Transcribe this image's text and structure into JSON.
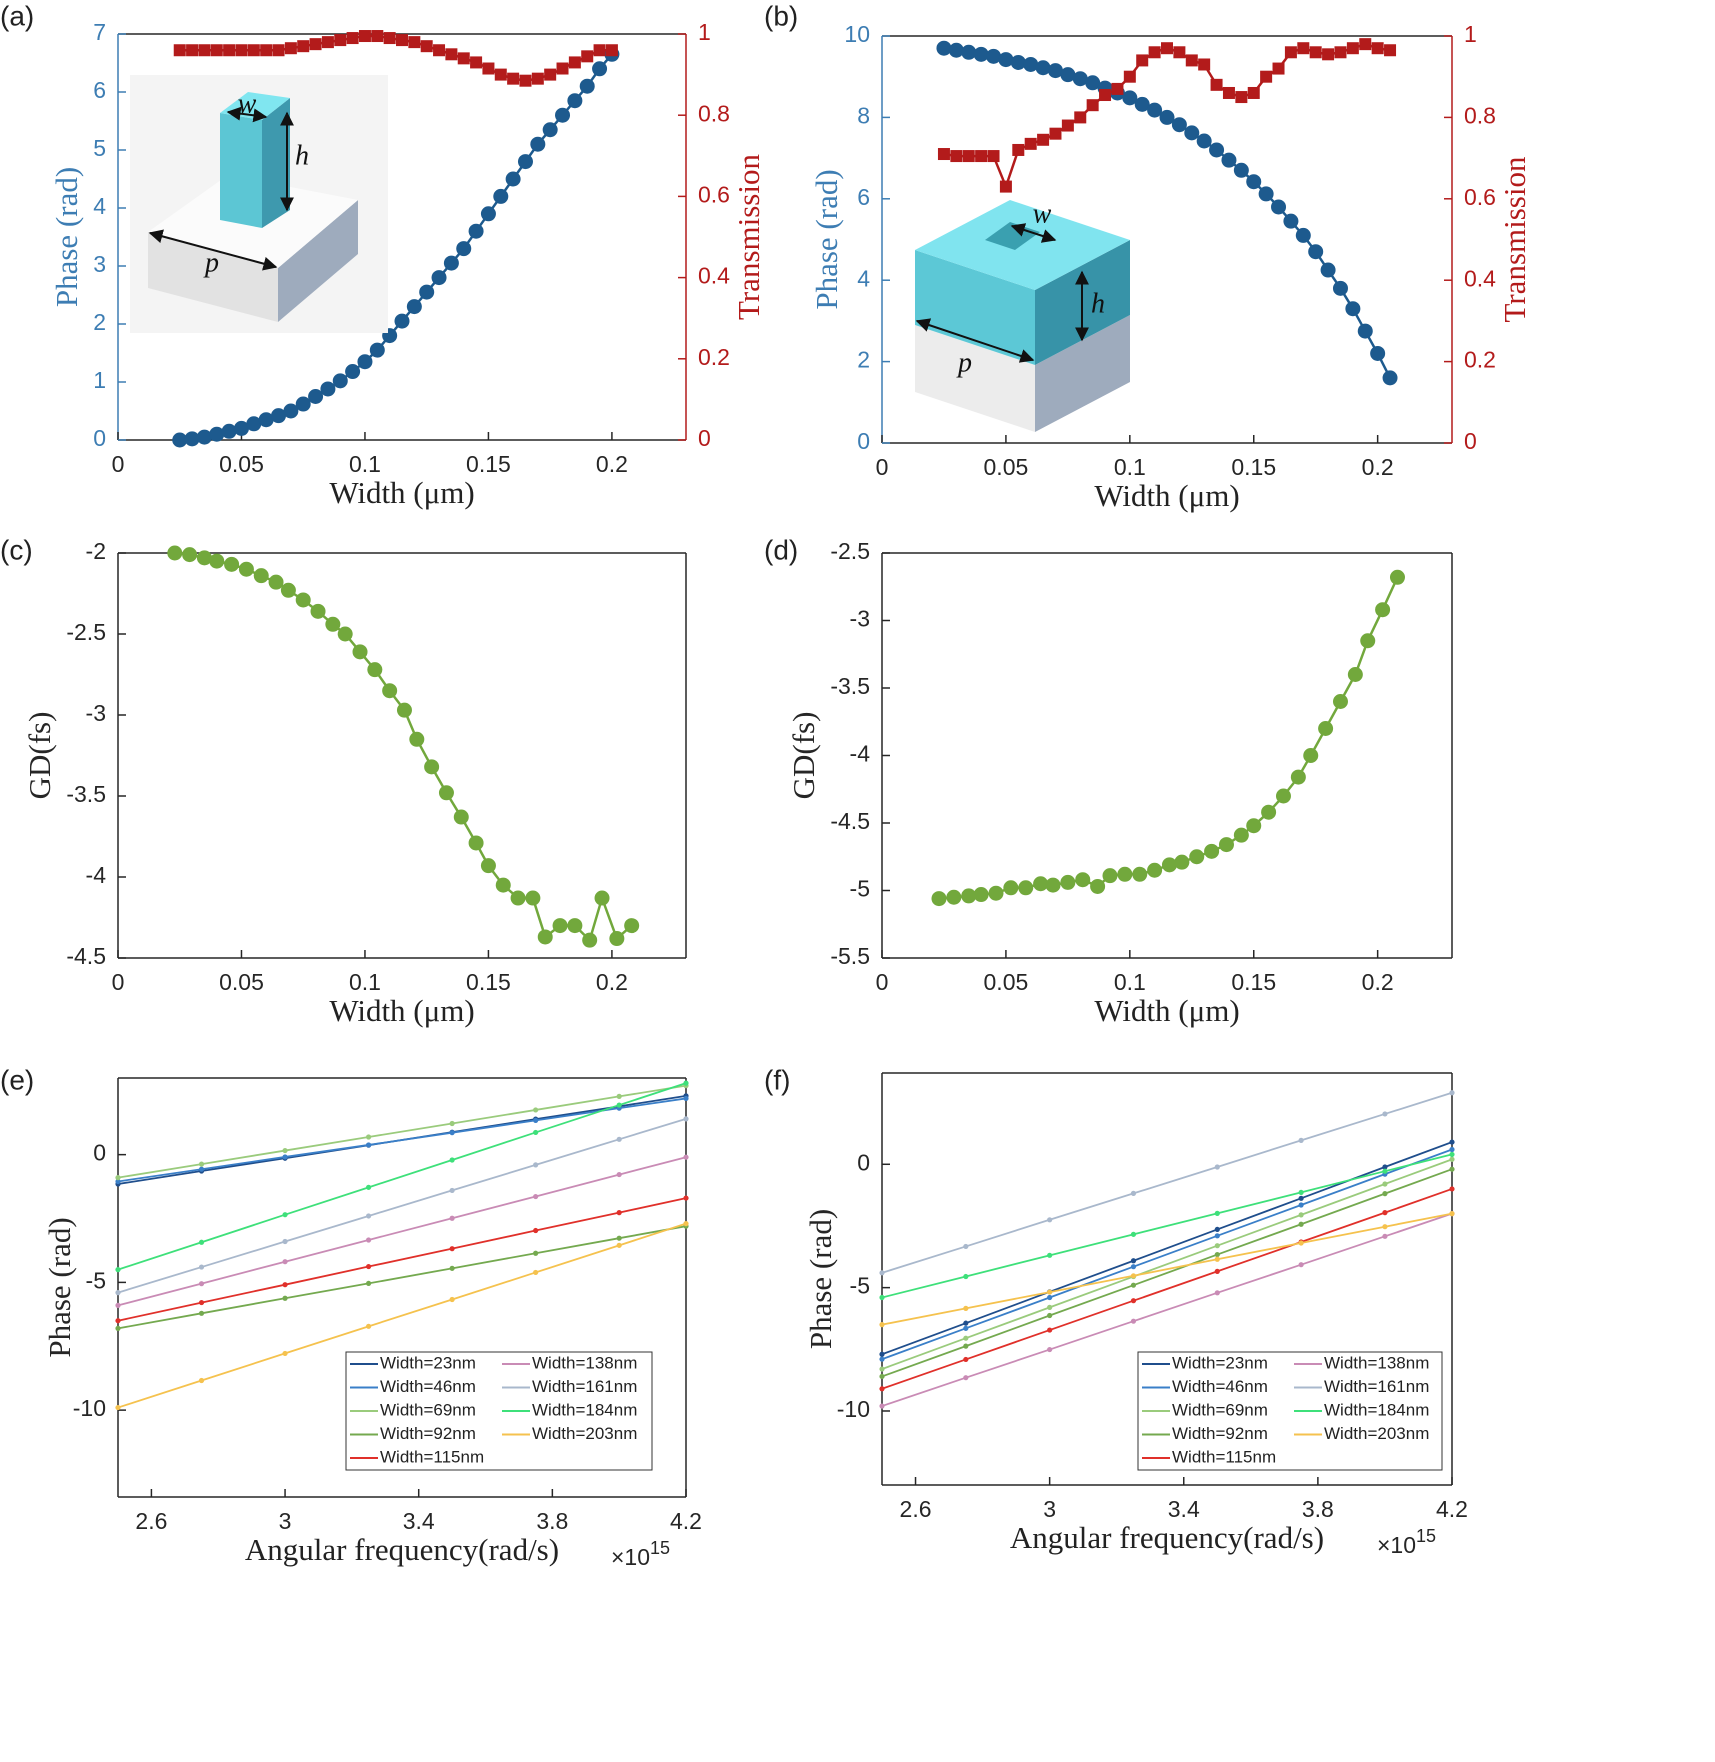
{
  "chart_data": [
    {
      "type": "line",
      "panel": "(a)",
      "xlabel": "Width (μm)",
      "ylabel": "Phase (rad)",
      "y2label": "Transmission",
      "ycolor": "#3d7db3",
      "y2color": "#b31b1b",
      "xlim": [
        0,
        0.23
      ],
      "xticks": [
        0,
        0.05,
        0.1,
        0.15,
        0.2
      ],
      "ylim": [
        0,
        7
      ],
      "yticks": [
        0,
        1,
        2,
        3,
        4,
        5,
        6,
        7
      ],
      "y2lim": [
        0,
        1
      ],
      "y2ticks": [
        0,
        0.2,
        0.4,
        0.6,
        0.8,
        1
      ],
      "inset_labels": [
        "w",
        "h",
        "p"
      ],
      "x": [
        0.025,
        0.03,
        0.035,
        0.04,
        0.045,
        0.05,
        0.055,
        0.06,
        0.065,
        0.07,
        0.075,
        0.08,
        0.085,
        0.09,
        0.095,
        0.1,
        0.105,
        0.11,
        0.115,
        0.12,
        0.125,
        0.13,
        0.135,
        0.14,
        0.145,
        0.15,
        0.155,
        0.16,
        0.165,
        0.17,
        0.175,
        0.18,
        0.185,
        0.19,
        0.195,
        0.2
      ],
      "series": [
        {
          "color": "#1d5a8e",
          "marker": "circle",
          "values": [
            0.0,
            0.02,
            0.05,
            0.1,
            0.15,
            0.2,
            0.28,
            0.35,
            0.42,
            0.5,
            0.62,
            0.75,
            0.88,
            1.02,
            1.18,
            1.35,
            1.55,
            1.8,
            2.05,
            2.3,
            2.55,
            2.8,
            3.05,
            3.3,
            3.6,
            3.9,
            4.2,
            4.5,
            4.8,
            5.1,
            5.35,
            5.6,
            5.85,
            6.1,
            6.4,
            6.65
          ]
        },
        {
          "color": "#b31b1b",
          "marker": "square",
          "axis": "y2",
          "values": [
            0.96,
            0.96,
            0.96,
            0.96,
            0.96,
            0.96,
            0.96,
            0.96,
            0.96,
            0.965,
            0.97,
            0.975,
            0.98,
            0.985,
            0.99,
            0.995,
            0.995,
            0.99,
            0.985,
            0.98,
            0.97,
            0.96,
            0.95,
            0.94,
            0.93,
            0.915,
            0.9,
            0.89,
            0.885,
            0.89,
            0.9,
            0.915,
            0.93,
            0.945,
            0.96,
            0.96
          ]
        }
      ]
    },
    {
      "type": "line",
      "panel": "(b)",
      "xlabel": "Width (μm)",
      "ylabel": "Phase (rad)",
      "y2label": "Transmission",
      "ycolor": "#3d7db3",
      "y2color": "#b31b1b",
      "xlim": [
        0,
        0.23
      ],
      "xticks": [
        0,
        0.05,
        0.1,
        0.15,
        0.2
      ],
      "ylim": [
        0,
        10
      ],
      "yticks": [
        0,
        2,
        4,
        6,
        8,
        10
      ],
      "y2lim": [
        0,
        1
      ],
      "y2ticks": [
        0,
        0.2,
        0.4,
        0.6,
        0.8,
        1
      ],
      "inset_labels": [
        "w",
        "h",
        "p"
      ],
      "x": [
        0.025,
        0.03,
        0.035,
        0.04,
        0.045,
        0.05,
        0.055,
        0.06,
        0.065,
        0.07,
        0.075,
        0.08,
        0.085,
        0.09,
        0.095,
        0.1,
        0.105,
        0.11,
        0.115,
        0.12,
        0.125,
        0.13,
        0.135,
        0.14,
        0.145,
        0.15,
        0.155,
        0.16,
        0.165,
        0.17,
        0.175,
        0.18,
        0.185,
        0.19,
        0.195,
        0.2,
        0.205
      ],
      "series": [
        {
          "color": "#1d5a8e",
          "marker": "circle",
          "values": [
            9.7,
            9.65,
            9.6,
            9.55,
            9.5,
            9.42,
            9.35,
            9.3,
            9.22,
            9.15,
            9.05,
            8.95,
            8.85,
            8.72,
            8.6,
            8.48,
            8.32,
            8.18,
            8.0,
            7.82,
            7.62,
            7.42,
            7.2,
            6.95,
            6.7,
            6.42,
            6.12,
            5.8,
            5.45,
            5.1,
            4.7,
            4.25,
            3.8,
            3.3,
            2.75,
            2.2,
            1.6
          ]
        },
        {
          "color": "#b31b1b",
          "marker": "square",
          "axis": "y2",
          "values": [
            0.71,
            0.705,
            0.705,
            0.705,
            0.705,
            0.63,
            0.72,
            0.735,
            0.745,
            0.76,
            0.78,
            0.8,
            0.83,
            0.855,
            0.87,
            0.9,
            0.94,
            0.96,
            0.97,
            0.96,
            0.94,
            0.93,
            0.88,
            0.86,
            0.85,
            0.86,
            0.9,
            0.92,
            0.96,
            0.97,
            0.96,
            0.955,
            0.96,
            0.97,
            0.98,
            0.97,
            0.965
          ]
        }
      ]
    },
    {
      "type": "line",
      "panel": "(c)",
      "xlabel": "Width (μm)",
      "ylabel": "GD(fs)",
      "xlim": [
        0,
        0.23
      ],
      "xticks": [
        0,
        0.05,
        0.1,
        0.15,
        0.2
      ],
      "ylim": [
        -4.5,
        -2
      ],
      "yticks": [
        -4.5,
        -4,
        -3.5,
        -3,
        -2.5,
        -2
      ],
      "x": [
        0.023,
        0.029,
        0.035,
        0.04,
        0.046,
        0.052,
        0.058,
        0.064,
        0.069,
        0.075,
        0.081,
        0.087,
        0.092,
        0.098,
        0.104,
        0.11,
        0.116,
        0.121,
        0.127,
        0.133,
        0.139,
        0.145,
        0.15,
        0.156,
        0.162,
        0.168,
        0.173,
        0.179,
        0.185,
        0.191,
        0.196,
        0.202,
        0.208
      ],
      "series": [
        {
          "color": "#72a83c",
          "marker": "circle",
          "values": [
            -2.0,
            -2.01,
            -2.03,
            -2.05,
            -2.07,
            -2.1,
            -2.14,
            -2.18,
            -2.23,
            -2.29,
            -2.36,
            -2.44,
            -2.5,
            -2.61,
            -2.72,
            -2.85,
            -2.97,
            -3.15,
            -3.32,
            -3.48,
            -3.63,
            -3.79,
            -3.93,
            -4.05,
            -4.13,
            -4.13,
            -4.37,
            -4.3,
            -4.3,
            -4.39,
            -4.13,
            -4.38,
            -4.3
          ]
        }
      ]
    },
    {
      "type": "line",
      "panel": "(d)",
      "xlabel": "Width (μm)",
      "ylabel": "GD(fs)",
      "xlim": [
        0,
        0.23
      ],
      "xticks": [
        0,
        0.05,
        0.1,
        0.15,
        0.2
      ],
      "ylim": [
        -5.5,
        -2.5
      ],
      "yticks": [
        -5.5,
        -5,
        -4.5,
        -4,
        -3.5,
        -3,
        -2.5
      ],
      "x": [
        0.023,
        0.029,
        0.035,
        0.04,
        0.046,
        0.052,
        0.058,
        0.064,
        0.069,
        0.075,
        0.081,
        0.087,
        0.092,
        0.098,
        0.104,
        0.11,
        0.116,
        0.121,
        0.127,
        0.133,
        0.139,
        0.145,
        0.15,
        0.156,
        0.162,
        0.168,
        0.173,
        0.179,
        0.185,
        0.191,
        0.196,
        0.202,
        0.208
      ],
      "series": [
        {
          "color": "#72a83c",
          "marker": "circle",
          "values": [
            -5.06,
            -5.05,
            -5.04,
            -5.03,
            -5.02,
            -4.98,
            -4.98,
            -4.95,
            -4.96,
            -4.94,
            -4.92,
            -4.97,
            -4.89,
            -4.88,
            -4.88,
            -4.85,
            -4.81,
            -4.79,
            -4.75,
            -4.71,
            -4.66,
            -4.59,
            -4.52,
            -4.42,
            -4.3,
            -4.16,
            -4.0,
            -3.8,
            -3.6,
            -3.4,
            -3.15,
            -2.92,
            -2.68
          ]
        }
      ]
    },
    {
      "type": "line",
      "panel": "(e)",
      "xlabel": "Angular frequency(rad/s)",
      "x_exponent": {
        "base": "×10",
        "power": "15"
      },
      "ylabel": "Phase (rad)",
      "legend": "lower right",
      "xlim": [
        2.5,
        4.2
      ],
      "xticks": [
        2.6,
        3,
        3.4,
        3.8,
        4.2
      ],
      "ylim": [
        -13.4,
        3
      ],
      "yticks": [
        -10,
        -5,
        0
      ],
      "x": [
        2.5,
        2.75,
        3,
        3.25,
        3.5,
        3.75,
        4,
        4.2
      ],
      "series": [
        {
          "name": "Width=23nm",
          "color": "#1f4e8c",
          "marker": "dot",
          "values": [
            -1.15,
            -0.64,
            -0.14,
            0.37,
            0.88,
            1.39,
            1.89,
            2.3
          ]
        },
        {
          "name": "Width=46nm",
          "color": "#3a7fc8",
          "marker": "dot",
          "values": [
            -1.05,
            -0.57,
            -0.09,
            0.38,
            0.86,
            1.34,
            1.82,
            2.2
          ]
        },
        {
          "name": "Width=69nm",
          "color": "#9acb7c",
          "marker": "dot",
          "values": [
            -0.9,
            -0.37,
            0.16,
            0.69,
            1.22,
            1.75,
            2.28,
            2.7
          ]
        },
        {
          "name": "Width=92nm",
          "color": "#74a94f",
          "marker": "dot",
          "values": [
            -6.8,
            -6.21,
            -5.62,
            -5.04,
            -4.45,
            -3.86,
            -3.27,
            -2.8
          ]
        },
        {
          "name": "Width=115nm",
          "color": "#e0302a",
          "marker": "dot",
          "values": [
            -6.5,
            -5.79,
            -5.09,
            -4.38,
            -3.68,
            -2.97,
            -2.27,
            -1.7
          ]
        },
        {
          "name": "Width=138nm",
          "color": "#c98bb5",
          "marker": "dot",
          "values": [
            -5.9,
            -5.05,
            -4.19,
            -3.34,
            -2.49,
            -1.64,
            -0.78,
            -0.1
          ]
        },
        {
          "name": "Width=161nm",
          "color": "#a9b8cc",
          "marker": "dot",
          "values": [
            -5.4,
            -4.4,
            -3.4,
            -2.4,
            -1.4,
            -0.4,
            0.6,
            1.4
          ]
        },
        {
          "name": "Width=184nm",
          "color": "#3ee07a",
          "marker": "dot",
          "values": [
            -4.5,
            -3.43,
            -2.35,
            -1.28,
            -0.21,
            0.87,
            1.94,
            2.8
          ]
        },
        {
          "name": "Width=203nm",
          "color": "#f5c24e",
          "marker": "dot",
          "values": [
            -9.9,
            -8.84,
            -7.78,
            -6.72,
            -5.67,
            -4.61,
            -3.55,
            -2.7
          ]
        }
      ]
    },
    {
      "type": "line",
      "panel": "(f)",
      "xlabel": "Angular frequency(rad/s)",
      "x_exponent": {
        "base": "×10",
        "power": "15"
      },
      "ylabel": "Phase (rad)",
      "legend": "lower right",
      "xlim": [
        2.5,
        4.2
      ],
      "xticks": [
        2.6,
        3,
        3.4,
        3.8,
        4.2
      ],
      "ylim": [
        -13,
        3.7
      ],
      "yticks": [
        -10,
        -5,
        0
      ],
      "x": [
        2.5,
        2.75,
        3,
        3.25,
        3.5,
        3.75,
        4,
        4.2
      ],
      "series": [
        {
          "name": "Width=23nm",
          "color": "#1f4e8c",
          "marker": "dot",
          "values": [
            -7.7,
            -6.44,
            -5.17,
            -3.91,
            -2.64,
            -1.38,
            -0.11,
            0.9
          ]
        },
        {
          "name": "Width=46nm",
          "color": "#3a7fc8",
          "marker": "dot",
          "values": [
            -7.9,
            -6.65,
            -5.4,
            -4.15,
            -2.9,
            -1.65,
            -0.4,
            0.6
          ]
        },
        {
          "name": "Width=69nm",
          "color": "#9acb7c",
          "marker": "dot",
          "values": [
            -8.3,
            -7.05,
            -5.8,
            -4.55,
            -3.3,
            -2.05,
            -0.8,
            0.2
          ]
        },
        {
          "name": "Width=92nm",
          "color": "#74a94f",
          "marker": "dot",
          "values": [
            -8.6,
            -7.37,
            -6.13,
            -4.9,
            -3.66,
            -2.43,
            -1.19,
            -0.2
          ]
        },
        {
          "name": "Width=115nm",
          "color": "#e0302a",
          "marker": "dot",
          "values": [
            -9.1,
            -7.91,
            -6.72,
            -5.53,
            -4.34,
            -3.15,
            -1.96,
            -1.0
          ]
        },
        {
          "name": "Width=138nm",
          "color": "#c98bb5",
          "marker": "dot",
          "values": [
            -9.8,
            -8.65,
            -7.51,
            -6.36,
            -5.21,
            -4.07,
            -2.92,
            -2.0
          ]
        },
        {
          "name": "Width=161nm",
          "color": "#a9b8cc",
          "marker": "dot",
          "values": [
            -4.4,
            -3.33,
            -2.25,
            -1.18,
            -0.11,
            0.97,
            2.04,
            2.9
          ]
        },
        {
          "name": "Width=184nm",
          "color": "#3ee07a",
          "marker": "dot",
          "values": [
            -5.4,
            -4.55,
            -3.69,
            -2.84,
            -1.99,
            -1.14,
            -0.28,
            0.4
          ]
        },
        {
          "name": "Width=203nm",
          "color": "#f5c24e",
          "marker": "dot",
          "values": [
            -6.5,
            -5.84,
            -5.18,
            -4.52,
            -3.85,
            -3.19,
            -2.53,
            -2.0
          ]
        }
      ]
    }
  ]
}
